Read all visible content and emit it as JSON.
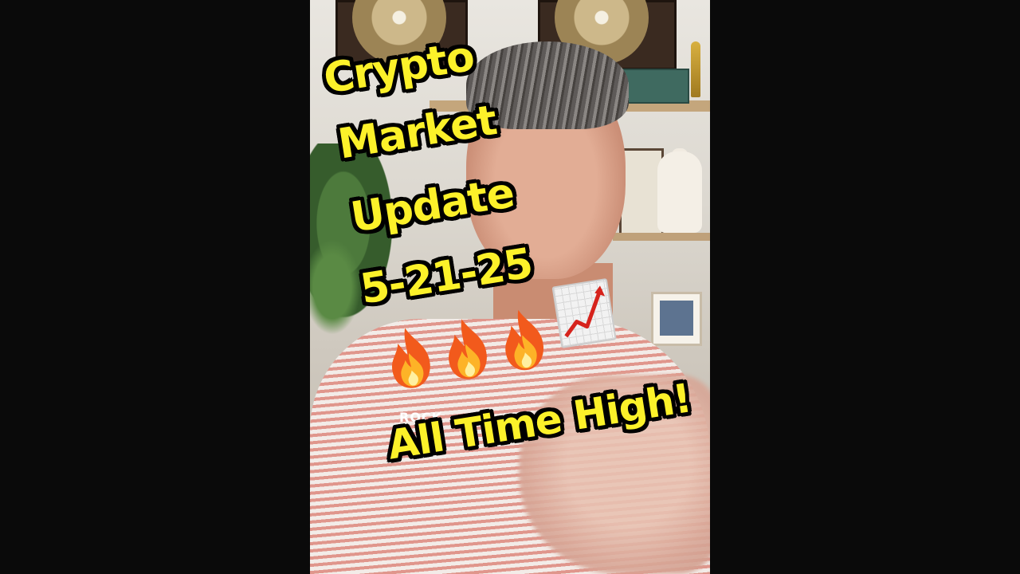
{
  "video": {
    "overlay_lines": [
      "Crypto",
      "Market",
      "Update",
      "5-21-25"
    ],
    "emojis": [
      "fire-emoji",
      "fire-emoji",
      "fire-emoji",
      "chart-increasing-emoji"
    ],
    "headline": "All Time High!",
    "partially_hidden_text": "ROCK"
  },
  "colors": {
    "background": "#0a0a0a",
    "caption_fill": "#fcf12a",
    "caption_stroke": "#000000"
  }
}
